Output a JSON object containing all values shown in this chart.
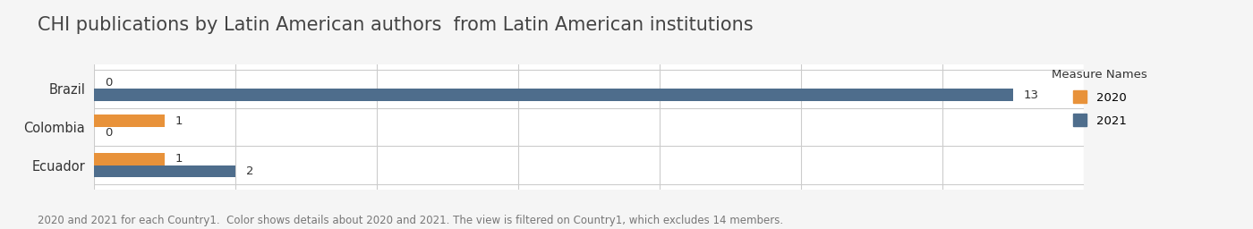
{
  "title": "CHI publications by Latin American authors  from Latin American institutions",
  "subtitle": "2020 and 2021 for each Country1.  Color shows details about 2020 and 2021. The view is filtered on Country1, which excludes 14 members.",
  "countries": [
    "Ecuador",
    "Colombia",
    "Brazil"
  ],
  "values_2020": [
    1,
    1,
    0
  ],
  "values_2021": [
    2,
    0,
    13
  ],
  "color_2020": "#E8923A",
  "color_2021": "#4E6D8C",
  "background_color": "#F5F5F5",
  "plot_background": "#FFFFFF",
  "legend_title": "Measure Names",
  "bar_height": 0.32,
  "xlim": [
    0,
    14
  ],
  "title_fontsize": 15,
  "label_fontsize": 9.5,
  "tick_fontsize": 10.5,
  "subtitle_fontsize": 8.5,
  "grid_color": "#CCCCCC"
}
